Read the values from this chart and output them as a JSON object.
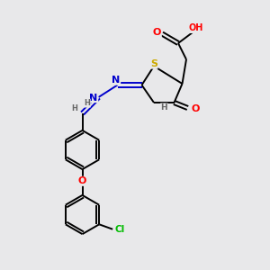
{
  "bg_color": "#e8e8ea",
  "bond_color": "#000000",
  "atom_colors": {
    "O": "#ff0000",
    "N": "#0000cc",
    "S": "#ccaa00",
    "Cl": "#00bb00",
    "H": "#666666",
    "C": "#000000"
  },
  "lw": 1.4
}
